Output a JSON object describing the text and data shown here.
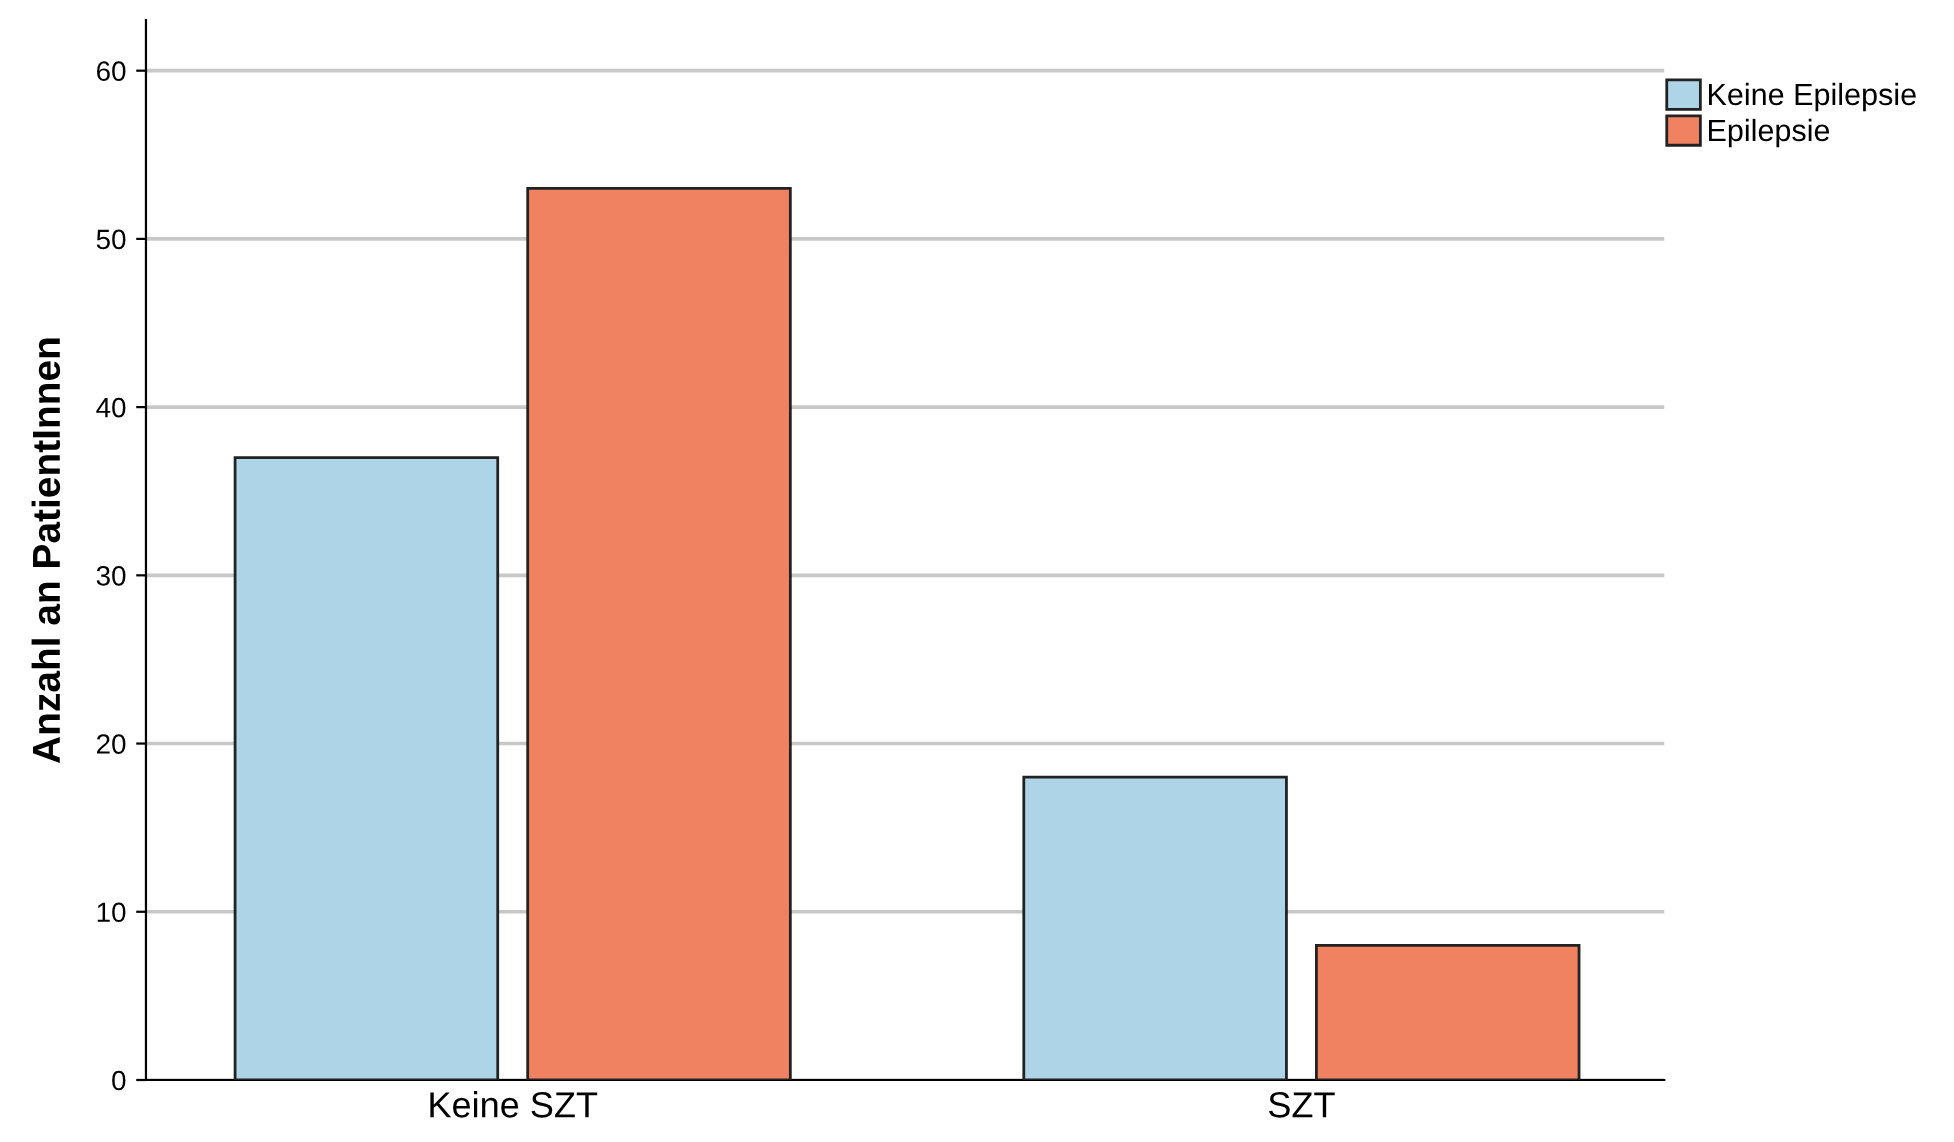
{
  "chart_data": {
    "type": "bar",
    "ylabel": "Anzahl an PatientInnen",
    "categories": [
      "Keine SZT",
      "SZT"
    ],
    "series": [
      {
        "name": "Keine Epilepsie",
        "color": "#add5e7",
        "values": [
          37,
          18
        ]
      },
      {
        "name": "Epilepsie",
        "color": "#f08262",
        "values": [
          53,
          8
        ]
      }
    ],
    "ylim": [
      0,
      63
    ],
    "yticks": [
      0,
      10,
      20,
      30,
      40,
      50,
      60
    ],
    "grid": "y",
    "legend": "right"
  }
}
